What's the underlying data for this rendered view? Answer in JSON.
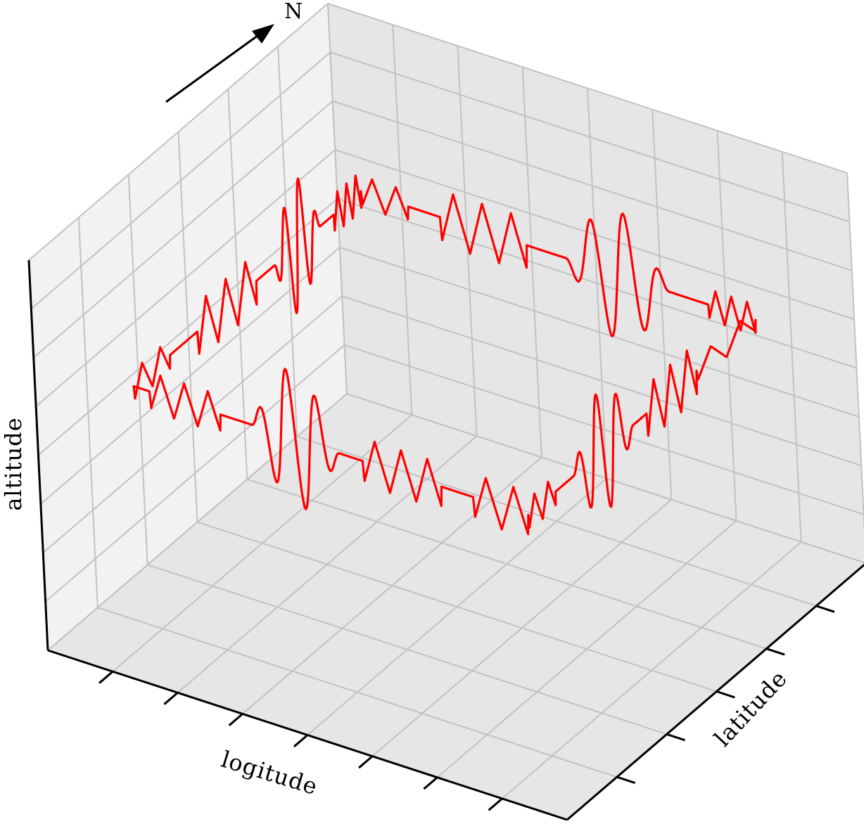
{
  "chart_data": {
    "type": "line",
    "projection": "3d",
    "xlabel": "logitude",
    "ylabel": "latitude",
    "zlabel": "altitude",
    "north_label": "N",
    "grid": true,
    "tick_labels_shown": false,
    "x_ticks": 8,
    "y_ticks": 6,
    "z_ticks": 8,
    "series": [
      {
        "color": "#ff0000",
        "description_free": true,
        "edges": [
          {
            "from": [
              0,
              0
            ],
            "to": [
              1,
              0
            ],
            "segments": [
              {
                "t": [
                  0.0,
                  0.04
                ],
                "kind": "flat"
              },
              {
                "t": [
                  0.04,
                  0.22
                ],
                "kind": "zigzag",
                "amp": 0.05,
                "waves": 3
              },
              {
                "t": [
                  0.22,
                  0.3
                ],
                "kind": "flat"
              },
              {
                "t": [
                  0.3,
                  0.52
                ],
                "kind": "wave",
                "amp": 0.18,
                "waves": 3
              },
              {
                "t": [
                  0.52,
                  0.58
                ],
                "kind": "flat"
              },
              {
                "t": [
                  0.58,
                  0.78
                ],
                "kind": "zigzag",
                "amp": 0.06,
                "waves": 3
              },
              {
                "t": [
                  0.78,
                  0.86
                ],
                "kind": "flat"
              },
              {
                "t": [
                  0.86,
                  1.0
                ],
                "kind": "zigzag",
                "amp": 0.06,
                "waves": 2
              }
            ]
          },
          {
            "from": [
              1,
              0
            ],
            "to": [
              1,
              1
            ],
            "segments": [
              {
                "t": [
                  0.0,
                  0.12
                ],
                "kind": "zigzag",
                "amp": 0.04,
                "waves": 2
              },
              {
                "t": [
                  0.12,
                  0.2
                ],
                "kind": "flat"
              },
              {
                "t": [
                  0.2,
                  0.46
                ],
                "kind": "wave",
                "amp": 0.16,
                "waves": 3
              },
              {
                "t": [
                  0.46,
                  0.52
                ],
                "kind": "flat"
              },
              {
                "t": [
                  0.52,
                  0.74
                ],
                "kind": "zigzag",
                "amp": 0.07,
                "waves": 3
              },
              {
                "t": [
                  0.74,
                  1.0
                ],
                "kind": "zigzag",
                "amp": 0.03,
                "waves": 2
              }
            ]
          },
          {
            "from": [
              1,
              1
            ],
            "to": [
              0,
              1
            ],
            "segments": [
              {
                "t": [
                  0.0,
                  0.12
                ],
                "kind": "zigzag",
                "amp": 0.04,
                "waves": 3
              },
              {
                "t": [
                  0.12,
                  0.22
                ],
                "kind": "flat"
              },
              {
                "t": [
                  0.22,
                  0.48
                ],
                "kind": "wave",
                "amp": 0.17,
                "waves": 3
              },
              {
                "t": [
                  0.48,
                  0.58
                ],
                "kind": "flat"
              },
              {
                "t": [
                  0.58,
                  0.8
                ],
                "kind": "zigzag",
                "amp": 0.07,
                "waves": 3
              },
              {
                "t": [
                  0.8,
                  0.88
                ],
                "kind": "flat"
              },
              {
                "t": [
                  0.88,
                  1.0
                ],
                "kind": "zigzag",
                "amp": 0.04,
                "waves": 2
              }
            ]
          },
          {
            "from": [
              0,
              1
            ],
            "to": [
              0,
              0
            ],
            "segments": [
              {
                "t": [
                  0.0,
                  0.12
                ],
                "kind": "zigzag",
                "amp": 0.05,
                "waves": 3
              },
              {
                "t": [
                  0.12,
                  0.18
                ],
                "kind": "flat"
              },
              {
                "t": [
                  0.18,
                  0.38
                ],
                "kind": "wave",
                "amp": 0.17,
                "waves": 3
              },
              {
                "t": [
                  0.38,
                  0.46
                ],
                "kind": "flat"
              },
              {
                "t": [
                  0.46,
                  0.72
                ],
                "kind": "zigzag",
                "amp": 0.07,
                "waves": 3
              },
              {
                "t": [
                  0.72,
                  0.84
                ],
                "kind": "flat"
              },
              {
                "t": [
                  0.84,
                  1.0
                ],
                "kind": "zigzag",
                "amp": 0.04,
                "waves": 2
              }
            ]
          }
        ]
      }
    ]
  }
}
